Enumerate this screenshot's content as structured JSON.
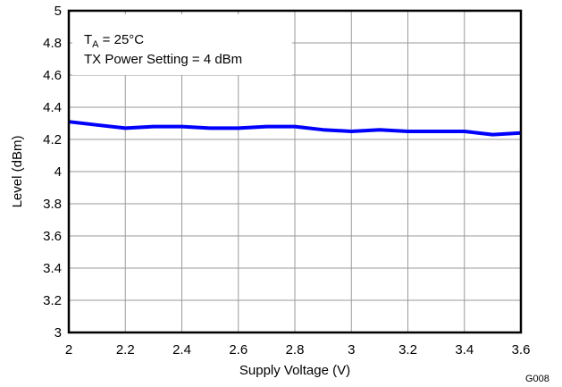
{
  "chart_data": {
    "type": "line",
    "title": "",
    "xlabel": "Supply Voltage (V)",
    "ylabel": "Level (dBm)",
    "xlim": [
      2,
      3.6
    ],
    "ylim": [
      3,
      5
    ],
    "x_ticks": [
      2,
      2.2,
      2.4,
      2.6,
      2.8,
      3,
      3.2,
      3.4,
      3.6
    ],
    "x_tick_labels": [
      "2",
      "2.2",
      "2.4",
      "2.6",
      "2.8",
      "3",
      "3.2",
      "3.4",
      "3.6"
    ],
    "y_ticks": [
      3,
      3.2,
      3.4,
      3.6,
      3.8,
      4,
      4.2,
      4.4,
      4.6,
      4.8,
      5
    ],
    "y_tick_labels": [
      "3",
      "3.2",
      "3.4",
      "3.6",
      "3.8",
      "4",
      "4.2",
      "4.4",
      "4.6",
      "4.8",
      "5"
    ],
    "grid": true,
    "series": [
      {
        "color": "#0000ff",
        "x": [
          2.0,
          2.1,
          2.2,
          2.3,
          2.4,
          2.5,
          2.6,
          2.7,
          2.8,
          2.9,
          3.0,
          3.1,
          3.2,
          3.3,
          3.4,
          3.5,
          3.6
        ],
        "values": [
          4.31,
          4.29,
          4.27,
          4.28,
          4.28,
          4.27,
          4.27,
          4.28,
          4.28,
          4.26,
          4.25,
          4.26,
          4.25,
          4.25,
          4.25,
          4.23,
          4.24
        ]
      }
    ],
    "annotation": {
      "line1_main": "T",
      "line1_sub": "A",
      "line1_rest": " = 25°C",
      "line2": "TX Power Setting = 4 dBm"
    },
    "figure_id": "G008"
  }
}
